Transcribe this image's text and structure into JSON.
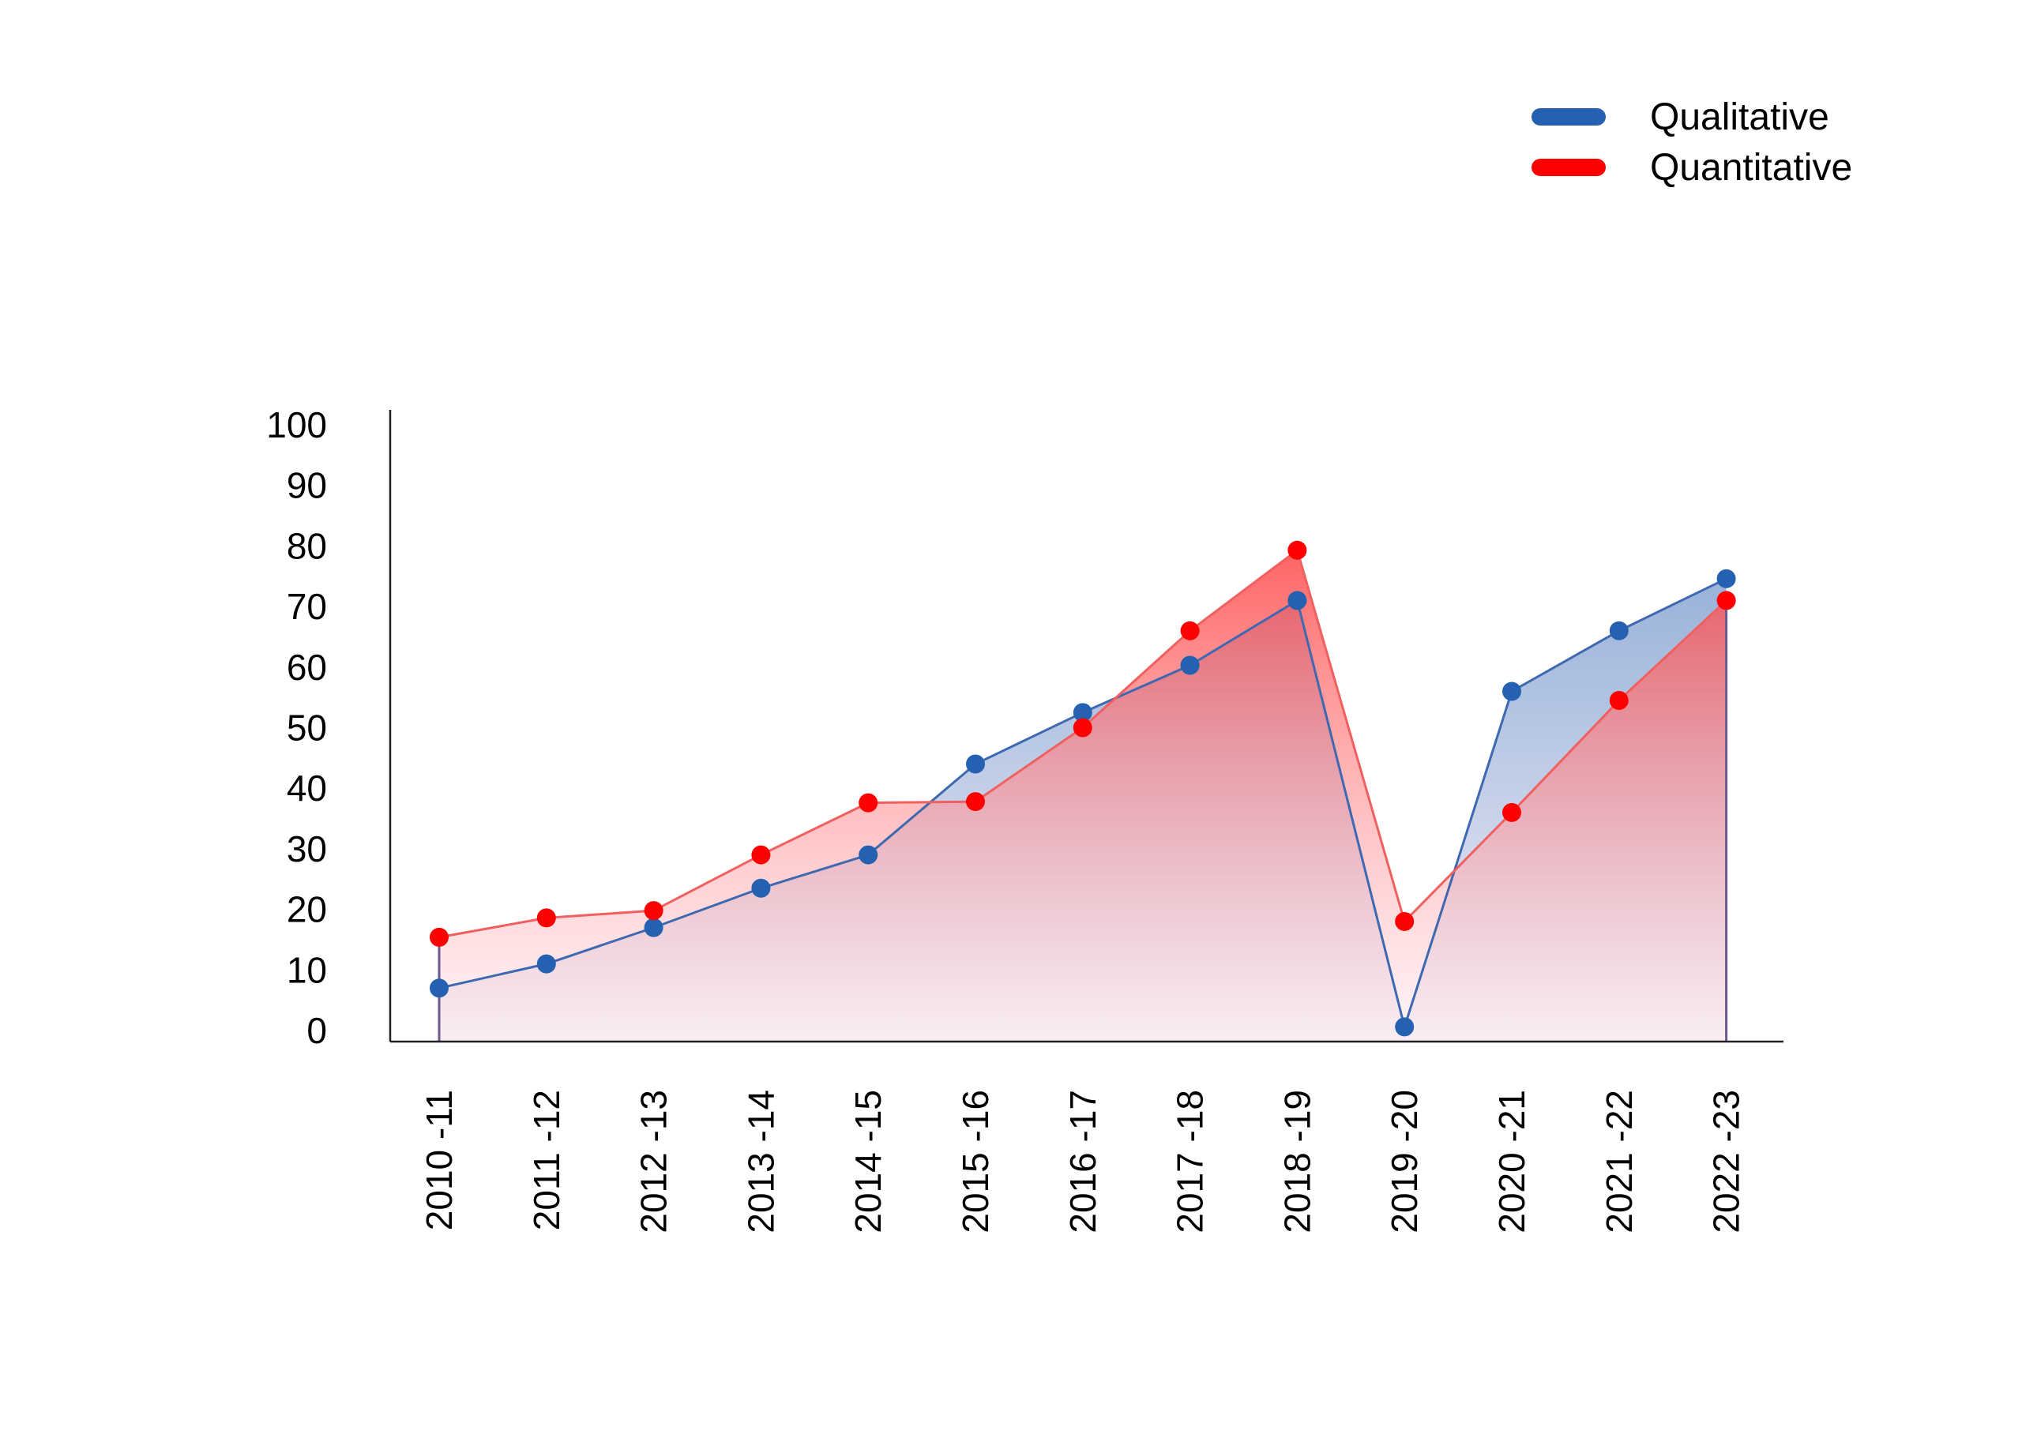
{
  "chart_data": {
    "type": "area",
    "title": "",
    "xlabel": "",
    "ylabel": "",
    "categories": [
      "2010 -11",
      "2011 -12",
      "2012 -13",
      "2013 -14",
      "2014 -15",
      "2015 -16",
      "2016 -17",
      "2017 -18",
      "2018 -19",
      "2019 -20",
      "2020 -21",
      "2021 -22",
      "2022 -23"
    ],
    "yticks": [
      0,
      10,
      20,
      30,
      40,
      50,
      60,
      70,
      80,
      90,
      100
    ],
    "ylim": [
      0,
      100
    ],
    "grid": false,
    "legend_position": "top-right",
    "series": [
      {
        "name": "Qualitative",
        "color": "#2461b0",
        "values": [
          7,
          11,
          17,
          23.5,
          29,
          44,
          52.5,
          60.3,
          71,
          0.6,
          56,
          66,
          74.6
        ]
      },
      {
        "name": "Quantitative",
        "color": "#ff0000",
        "values": [
          15.4,
          18.6,
          19.8,
          29,
          37.6,
          37.8,
          50,
          66,
          79.3,
          18,
          36,
          54.5,
          71
        ]
      }
    ]
  }
}
